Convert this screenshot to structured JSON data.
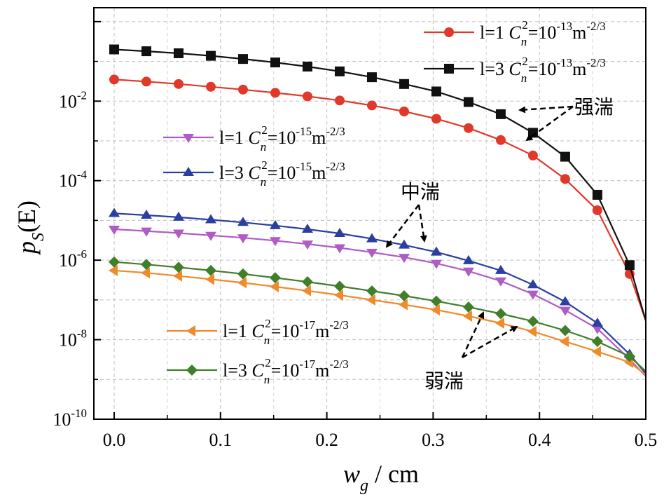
{
  "chart_data": {
    "type": "line",
    "y_scale": "log",
    "xlim": [
      0.0,
      0.5
    ],
    "ylim_exp": [
      -10,
      0
    ],
    "x_ticks": [
      0.0,
      0.1,
      0.2,
      0.3,
      0.4,
      0.5
    ],
    "x_tick_labels": [
      "0.0",
      "0.1",
      "0.2",
      "0.3",
      "0.4",
      "0.5"
    ],
    "y_ticks_exp": [
      -2,
      -4,
      -6,
      -8,
      -10
    ],
    "y_tick_base": "10",
    "y_tick_exps": [
      "-2",
      "-4",
      "-6",
      "-8",
      "-10"
    ],
    "grid": true,
    "xlabel": {
      "var": "w",
      "sub": "g",
      "rest": " / cm"
    },
    "ylabel": {
      "var": "p",
      "sub": "S",
      "rest": "(E)"
    },
    "x": [
      0.0,
      0.0303,
      0.0606,
      0.0909,
      0.1212,
      0.1515,
      0.1818,
      0.2121,
      0.2424,
      0.2727,
      0.303,
      0.3333,
      0.3636,
      0.3939,
      0.4242,
      0.4545,
      0.4848,
      0.5
    ],
    "series": [
      {
        "name": "l=1 C_n^2=10^-13 m^-2/3",
        "color": "#e0392b",
        "marker": "circle",
        "label_parts": [
          "l=1 ",
          "C",
          "n",
          "2",
          "=10",
          "-13",
          "m",
          "-2/3"
        ],
        "values": [
          0.035,
          0.031,
          0.027,
          0.023,
          0.0195,
          0.0162,
          0.0132,
          0.0104,
          0.0078,
          0.0055,
          0.0036,
          0.0021,
          0.00105,
          0.00043,
          0.00011,
          1.8e-05,
          4.5e-07,
          3e-08
        ]
      },
      {
        "name": "l=3 C_n^2=10^-13 m^-2/3",
        "color": "#111111",
        "marker": "square",
        "label_parts": [
          "l=3 ",
          "C",
          "n",
          "2",
          "=10",
          "-13",
          "m",
          "-2/3"
        ],
        "values": [
          0.2,
          0.18,
          0.16,
          0.138,
          0.115,
          0.094,
          0.074,
          0.056,
          0.04,
          0.027,
          0.0175,
          0.0095,
          0.0047,
          0.0016,
          0.0004,
          4.4e-05,
          7.5e-07,
          3e-08
        ]
      },
      {
        "name": "l=1 C_n^2=10^-15 m^-2/3",
        "color": "#b05cc6",
        "marker": "triangle-down",
        "label_parts": [
          "l=1 ",
          "C",
          "n",
          "2",
          "=10",
          "-15",
          "m",
          "-2/3"
        ],
        "values": [
          6e-06,
          5.4e-06,
          4.8e-06,
          4.2e-06,
          3.65e-06,
          3.1e-06,
          2.55e-06,
          2.05e-06,
          1.58e-06,
          1.18e-06,
          8.3e-07,
          5.3e-07,
          3e-07,
          1.4e-07,
          5.5e-08,
          1.9e-08,
          3.2e-09,
          1.2e-09
        ]
      },
      {
        "name": "l=3 C_n^2=10^-15 m^-2/3",
        "color": "#2b3fa0",
        "marker": "triangle-up",
        "label_parts": [
          "l=3 ",
          "C",
          "n",
          "2",
          "=10",
          "-15",
          "m",
          "-2/3"
        ],
        "values": [
          1.5e-05,
          1.35e-05,
          1.2e-05,
          1.04e-05,
          8.9e-06,
          7.4e-06,
          6e-06,
          4.7e-06,
          3.45e-06,
          2.4e-06,
          1.6e-06,
          9.7e-07,
          5.5e-07,
          2.4e-07,
          9e-08,
          2.6e-08,
          4.3e-09,
          1.4e-09
        ]
      },
      {
        "name": "l=1 C_n^2=10^-17 m^-2/3",
        "color": "#f08a2c",
        "marker": "triangle-left",
        "label_parts": [
          "l=1 ",
          "C",
          "n",
          "2",
          "=10",
          "-17",
          "m",
          "-2/3"
        ],
        "values": [
          5.5e-07,
          4.8e-07,
          4e-07,
          3.3e-07,
          2.7e-07,
          2.15e-07,
          1.7e-07,
          1.32e-07,
          1e-07,
          7.6e-08,
          5.6e-08,
          3.9e-08,
          2.6e-08,
          1.6e-08,
          9e-09,
          5e-09,
          2.7e-09,
          1.3e-09
        ]
      },
      {
        "name": "l=3 C_n^2=10^-17 m^-2/3",
        "color": "#3f7f2a",
        "marker": "diamond",
        "label_parts": [
          "l=3 ",
          "C",
          "n",
          "2",
          "=10",
          "-17",
          "m",
          "-2/3"
        ],
        "values": [
          9e-07,
          7.8e-07,
          6.6e-07,
          5.5e-07,
          4.5e-07,
          3.6e-07,
          2.85e-07,
          2.2e-07,
          1.68e-07,
          1.27e-07,
          9.3e-08,
          6.6e-08,
          4.5e-08,
          2.9e-08,
          1.7e-08,
          9e-09,
          3.8e-09,
          1.6e-09
        ]
      }
    ],
    "annotations": [
      {
        "text": "强湍"
      },
      {
        "text": "中湍"
      },
      {
        "text": "弱湍"
      }
    ]
  }
}
